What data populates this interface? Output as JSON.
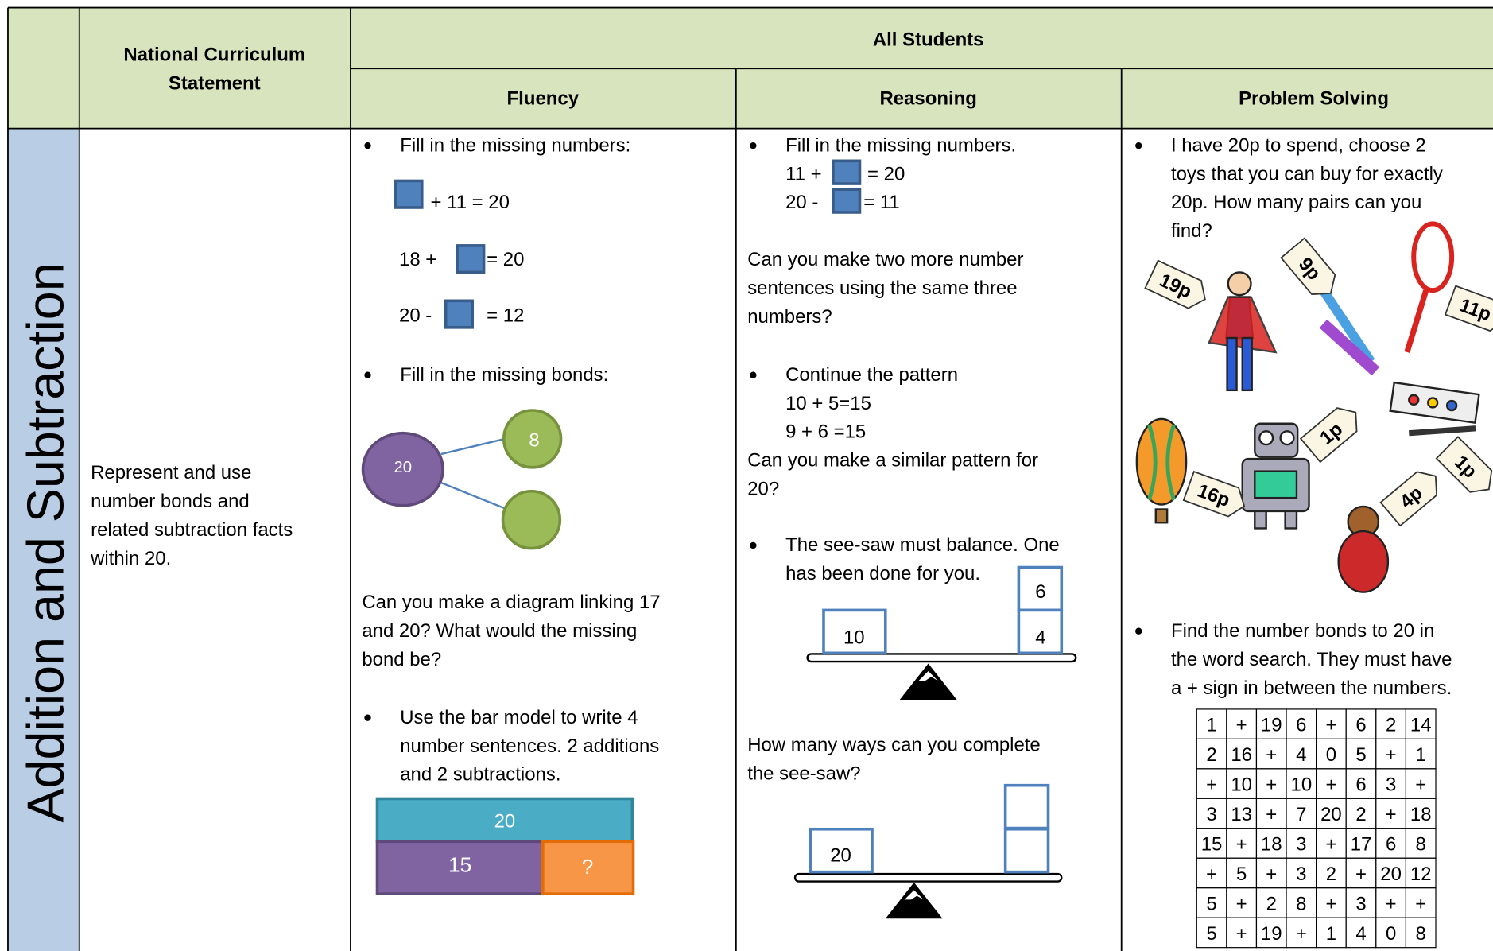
{
  "header": {
    "curriculum": [
      "National Curriculum",
      "Statement"
    ],
    "all_students": "All Students",
    "fluency": "Fluency",
    "reasoning": "Reasoning",
    "problem_solving": "Problem Solving"
  },
  "row": {
    "topic": "Addition and Subtraction",
    "statement": [
      "Represent and use",
      "number bonds and",
      "related subtraction facts",
      "within 20."
    ],
    "fluency": {
      "bullet1": "Fill in the missing numbers:",
      "eq1": "+  11 = 20",
      "eq2": [
        "18  +",
        "= 20"
      ],
      "eq3": [
        "20 -",
        "= 12"
      ],
      "bullet2": "Fill in the missing bonds:",
      "bond_whole": "20",
      "bond_part": "8",
      "question": [
        "Can you make a diagram linking 17",
        "and 20? What would the missing",
        "bond be?"
      ],
      "bullet3": [
        "Use the bar model to write 4",
        "number sentences. 2 additions",
        "and 2 subtractions."
      ],
      "bar_total": "20",
      "bar_parts": [
        "15",
        "?"
      ]
    },
    "reasoning": {
      "bullet1": "Fill in the missing numbers.",
      "eq1": [
        "11 +",
        "= 20"
      ],
      "eq2": [
        "20 -",
        "= 11"
      ],
      "question1": [
        "Can you make two more number",
        "sentences using the same three",
        "numbers?"
      ],
      "bullet2": [
        "Continue the pattern",
        "10 + 5=15",
        "9 + 6 =15"
      ],
      "question2": [
        "Can you make a similar pattern for",
        "20?"
      ],
      "bullet3": [
        "The see-saw must balance. One",
        "has been done for you."
      ],
      "seesaw1": {
        "left": "10",
        "right": [
          "6",
          "4"
        ]
      },
      "question3": [
        "How many ways can you complete",
        "the see-saw?"
      ],
      "seesaw2": {
        "left": "20"
      }
    },
    "problem_solving": {
      "bullet1": [
        "I have 20p to spend, choose 2",
        "toys that you can buy for exactly",
        "20p. How many pairs can you",
        "find?"
      ],
      "price_tags": [
        "19p",
        "9p",
        "11p",
        "1p",
        "16p",
        "1p",
        "4p"
      ],
      "bullet2": [
        "Find the number bonds to 20 in",
        "the word search. They must have",
        "a + sign in between the numbers."
      ],
      "word_search": [
        [
          "1",
          "+",
          "19",
          "6",
          "+",
          "6",
          "2",
          "14"
        ],
        [
          "2",
          "16",
          "+",
          "4",
          "0",
          "5",
          "+",
          "1"
        ],
        [
          "+",
          "10",
          "+",
          "10",
          "+",
          "6",
          "3",
          "+"
        ],
        [
          "3",
          "13",
          "+",
          "7",
          "20",
          "2",
          "+",
          "18"
        ],
        [
          "15",
          "+",
          "18",
          "3",
          "+",
          "17",
          "6",
          "8"
        ],
        [
          "+",
          "5",
          "+",
          "3",
          "2",
          "+",
          "20",
          "12"
        ],
        [
          "5",
          "+",
          "2",
          "8",
          "+",
          "3",
          "+",
          "+"
        ],
        [
          "5",
          "+",
          "19",
          "+",
          "1",
          "4",
          "0",
          "8"
        ]
      ]
    }
  }
}
